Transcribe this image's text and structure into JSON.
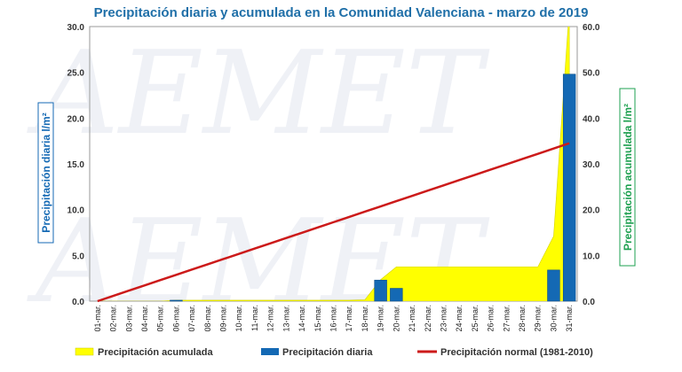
{
  "chart_data": {
    "type": "bar+area+line",
    "title": "Precipitación diaria y acumulada en la Comunidad Valenciana - marzo de 2019",
    "ylabel_left": "Precipitación diaria l/m²",
    "ylabel_right": "Precipitación acumulada l/m²",
    "ylim_left": [
      0,
      30
    ],
    "ylim_right": [
      0,
      60
    ],
    "yticks_left": [
      "0.0",
      "5.0",
      "10.0",
      "15.0",
      "20.0",
      "25.0",
      "30.0"
    ],
    "yticks_right": [
      "0.0",
      "10.0",
      "20.0",
      "30.0",
      "40.0",
      "50.0",
      "60.0"
    ],
    "categories": [
      "01-mar.",
      "02-mar.",
      "03-mar.",
      "04-mar.",
      "05-mar.",
      "06-mar.",
      "07-mar.",
      "08-mar.",
      "09-mar.",
      "10-mar.",
      "11-mar.",
      "12-mar.",
      "13-mar.",
      "14-mar.",
      "15-mar.",
      "16-mar.",
      "17-mar.",
      "18-mar.",
      "19-mar.",
      "20-mar.",
      "21-mar.",
      "22-mar.",
      "23-mar.",
      "24-mar.",
      "25-mar.",
      "26-mar.",
      "27-mar.",
      "28-mar.",
      "29-mar.",
      "30-mar.",
      "31-mar."
    ],
    "series": [
      {
        "name": "Precipitación acumulada",
        "type": "area",
        "axis": "right",
        "color": "#ffff00",
        "values": [
          0,
          0,
          0,
          0,
          0,
          0.2,
          0.2,
          0.2,
          0.2,
          0.2,
          0.2,
          0.2,
          0.2,
          0.2,
          0.2,
          0.2,
          0.2,
          0.3,
          4.7,
          7.5,
          7.5,
          7.5,
          7.5,
          7.5,
          7.5,
          7.5,
          7.5,
          7.5,
          7.5,
          14.2,
          64
        ]
      },
      {
        "name": "Precipitación diaria",
        "type": "bar",
        "axis": "left",
        "color": "#1469b4",
        "values": [
          0,
          0,
          0,
          0,
          0,
          0.1,
          0,
          0,
          0,
          0,
          0,
          0,
          0,
          0,
          0,
          0,
          0,
          0,
          2.3,
          1.4,
          0,
          0,
          0,
          0,
          0,
          0,
          0,
          0,
          0,
          3.4,
          24.8
        ]
      },
      {
        "name": "Precipitación normal (1981-2010)",
        "type": "line",
        "axis": "right",
        "color": "#cc1a1a",
        "values": [
          0,
          1.15,
          2.3,
          3.45,
          4.6,
          5.75,
          6.9,
          8.05,
          9.2,
          10.35,
          11.5,
          12.65,
          13.8,
          14.95,
          16.1,
          17.25,
          18.4,
          19.55,
          20.7,
          21.85,
          23.0,
          24.15,
          25.3,
          26.45,
          27.6,
          28.75,
          29.9,
          31.05,
          32.2,
          33.35,
          34.5
        ]
      }
    ],
    "grid": false,
    "legend_position": "bottom"
  }
}
